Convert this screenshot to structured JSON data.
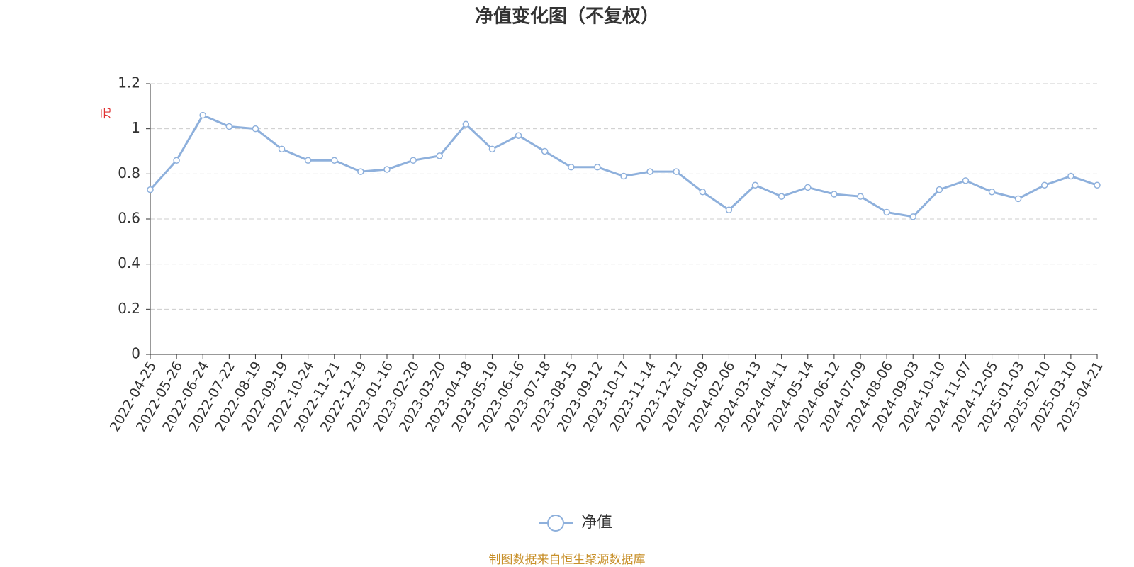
{
  "chart_data": {
    "type": "line",
    "title": "净值变化图（不复权）",
    "y_label": "元",
    "source": "制图数据来自恒生聚源数据库",
    "categories": [
      "2022-04-25",
      "2022-05-26",
      "2022-06-24",
      "2022-07-22",
      "2022-08-19",
      "2022-09-19",
      "2022-10-24",
      "2022-11-21",
      "2022-12-19",
      "2023-01-16",
      "2023-02-20",
      "2023-03-20",
      "2023-04-18",
      "2023-05-19",
      "2023-06-16",
      "2023-07-18",
      "2023-08-15",
      "2023-09-12",
      "2023-10-17",
      "2023-11-14",
      "2023-12-12",
      "2024-01-09",
      "2024-02-06",
      "2024-03-13",
      "2024-04-11",
      "2024-05-14",
      "2024-06-12",
      "2024-07-09",
      "2024-08-06",
      "2024-09-03",
      "2024-10-10",
      "2024-11-07",
      "2024-12-05",
      "2025-01-03",
      "2025-02-10",
      "2025-03-10",
      "2025-04-21"
    ],
    "series": [
      {
        "name": "净值",
        "color": "#8eb0dc",
        "values": [
          0.73,
          0.86,
          1.06,
          1.01,
          1.0,
          0.91,
          0.86,
          0.86,
          0.81,
          0.82,
          0.86,
          0.88,
          1.02,
          0.91,
          0.97,
          0.9,
          0.83,
          0.83,
          0.79,
          0.81,
          0.81,
          0.72,
          0.64,
          0.75,
          0.7,
          0.74,
          0.71,
          0.7,
          0.63,
          0.61,
          0.73,
          0.77,
          0.72,
          0.69,
          0.75,
          0.79,
          0.75
        ]
      }
    ],
    "ylim": [
      0,
      1.2
    ],
    "yticks": [
      0,
      0.2,
      0.4,
      0.6,
      0.8,
      1,
      1.2
    ],
    "grid": true
  }
}
